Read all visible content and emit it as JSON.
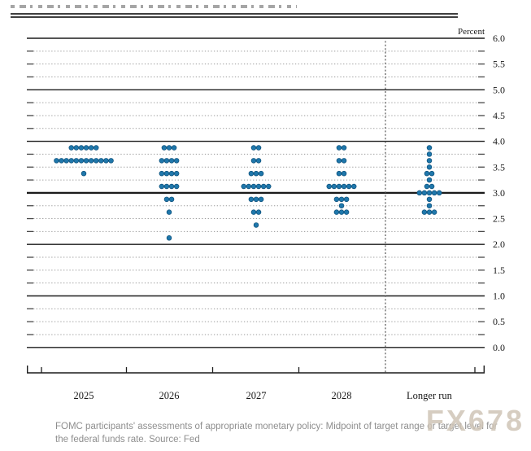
{
  "watermark": "FX678",
  "caption": "FOMC participants' assessments of appropriate monetary policy: Midpoint of target range or target level for the federal funds rate. Source: Fed",
  "chart_data": {
    "type": "scatter",
    "subtype": "fomc-dot-plot",
    "ylabel": "Percent",
    "ylim": [
      0.0,
      6.0
    ],
    "grid": {
      "solid_at": [
        0,
        1,
        2,
        3,
        4,
        5,
        6
      ],
      "dashed_step": 0.25,
      "emphasized_line": 3.0
    },
    "legend_position": "none",
    "ytick_labels": [
      "6.0",
      "5.5",
      "5.0",
      "4.5",
      "4.0",
      "3.5",
      "3.0",
      "2.5",
      "2.0",
      "1.5",
      "1.0",
      "0.5",
      "0.0"
    ],
    "categories": [
      "2025",
      "2026",
      "2027",
      "2028",
      "Longer run"
    ],
    "separator_before_category": "Longer run",
    "dot_color": "#1f77ab",
    "dot_edge_color": "#0d4f79",
    "series": [
      {
        "category": "2025",
        "dots": [
          {
            "rate": 3.875,
            "count": 6
          },
          {
            "rate": 3.625,
            "count": 12
          },
          {
            "rate": 3.375,
            "count": 1
          }
        ]
      },
      {
        "category": "2026",
        "dots": [
          {
            "rate": 3.875,
            "count": 3
          },
          {
            "rate": 3.625,
            "count": 4
          },
          {
            "rate": 3.375,
            "count": 4
          },
          {
            "rate": 3.125,
            "count": 4
          },
          {
            "rate": 2.875,
            "count": 2
          },
          {
            "rate": 2.625,
            "count": 1
          },
          {
            "rate": 2.125,
            "count": 1
          }
        ]
      },
      {
        "category": "2027",
        "dots": [
          {
            "rate": 3.875,
            "count": 2
          },
          {
            "rate": 3.625,
            "count": 2
          },
          {
            "rate": 3.375,
            "count": 3
          },
          {
            "rate": 3.125,
            "count": 6
          },
          {
            "rate": 2.875,
            "count": 3
          },
          {
            "rate": 2.625,
            "count": 2
          },
          {
            "rate": 2.375,
            "count": 1
          }
        ]
      },
      {
        "category": "2028",
        "dots": [
          {
            "rate": 3.875,
            "count": 2
          },
          {
            "rate": 3.625,
            "count": 2
          },
          {
            "rate": 3.375,
            "count": 2
          },
          {
            "rate": 3.125,
            "count": 6
          },
          {
            "rate": 2.875,
            "count": 3
          },
          {
            "rate": 2.75,
            "count": 1
          },
          {
            "rate": 2.625,
            "count": 3
          }
        ]
      },
      {
        "category": "Longer run",
        "dots": [
          {
            "rate": 3.875,
            "count": 1
          },
          {
            "rate": 3.75,
            "count": 1
          },
          {
            "rate": 3.625,
            "count": 1
          },
          {
            "rate": 3.5,
            "count": 1
          },
          {
            "rate": 3.375,
            "count": 2
          },
          {
            "rate": 3.25,
            "count": 1
          },
          {
            "rate": 3.125,
            "count": 2
          },
          {
            "rate": 3.0,
            "count": 5
          },
          {
            "rate": 2.875,
            "count": 1
          },
          {
            "rate": 2.75,
            "count": 1
          },
          {
            "rate": 2.625,
            "count": 3
          }
        ]
      }
    ]
  }
}
